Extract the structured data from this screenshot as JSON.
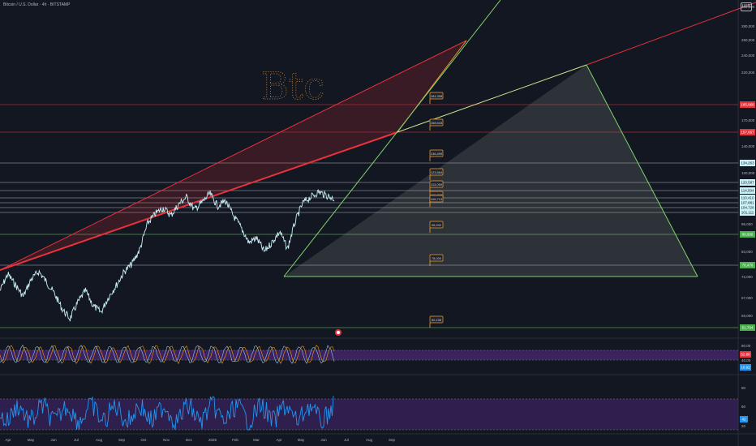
{
  "header": {
    "symbol_title": "Bitcoin / U.S. Dollar · 4h · BITSTAMP",
    "currency": "USD"
  },
  "colors": {
    "background": "#131722",
    "price_line": "#c8f0f6",
    "red_line": "#e8323c",
    "green_line": "#7fd46f",
    "orange_line": "#f0962c",
    "hline_neutral": "#5d606b",
    "oscillator_band": "#5b2e91",
    "blue_series": "#2196f3",
    "osc_line_a": "#ff9800",
    "osc_line_b": "#90caf9",
    "marker_orange": "#f59f2a"
  },
  "handwriting": "Btc",
  "price_axis": {
    "ticks": [
      "300,000",
      "280,000",
      "260,000",
      "240,000",
      "220,000",
      "170,000",
      "140,000",
      "120,000",
      "95,000",
      "83,000",
      "72,000",
      "67,000",
      "59,000"
    ],
    "price_labels": [
      {
        "text": "185,968",
        "kind": "red"
      },
      {
        "text": "157,667",
        "kind": "red"
      },
      {
        "text": "134,263",
        "kind": "teal"
      },
      {
        "text": "120,587",
        "kind": "teal"
      },
      {
        "text": "114,504",
        "kind": "teal"
      },
      {
        "text": "110,410",
        "kind": "teal"
      },
      {
        "text": "107,881",
        "kind": "teal"
      },
      {
        "text": "104,728",
        "kind": "teal"
      },
      {
        "text": "101,111",
        "kind": "teal"
      },
      {
        "text": "89,999",
        "kind": "green"
      },
      {
        "text": "78,476",
        "kind": "green"
      },
      {
        "text": "51,704",
        "kind": "green"
      }
    ]
  },
  "osc_axis": {
    "ticks": [
      "80.00",
      "40.00"
    ],
    "labels": [
      {
        "text": "52.88",
        "kind": "red"
      },
      {
        "text": "10.92",
        "kind": "blue"
      }
    ]
  },
  "blue_axis": {
    "ticks": [
      "80",
      "60",
      "20"
    ],
    "labels": [
      {
        "text": "42",
        "kind": "blue"
      }
    ]
  },
  "time_axis": {
    "labels": [
      "Apr",
      "May",
      "Jun",
      "Jul",
      "Aug",
      "Sep",
      "Oct",
      "Nov",
      "Dec",
      "2025",
      "Feb",
      "Mar",
      "Apr",
      "May",
      "Jun",
      "Jul",
      "Aug",
      "Sep"
    ]
  },
  "markers": [
    "184,308",
    "158,543",
    "136,499",
    "123,564",
    "113,059",
    "109,608",
    "106,713",
    "95,202",
    "78,000",
    "50,158"
  ],
  "chart_data": {
    "type": "line",
    "title": "",
    "series": [
      {
        "values": [
          64000,
          70000,
          66000,
          62000,
          68000,
          71000,
          67000,
          63000,
          58000,
          55000,
          60000,
          64000,
          59000,
          57000,
          62000,
          66000,
          71000,
          74000,
          80000,
          92000,
          97000,
          100000,
          96000,
          102000,
          106000,
          99000,
          103000,
          108000,
          101000,
          104000,
          96000,
          90000,
          83000,
          85000,
          79000,
          83000,
          88000,
          80000,
          93000,
          103000,
          106000,
          109000,
          107000,
          105000
        ]
      }
    ]
  }
}
